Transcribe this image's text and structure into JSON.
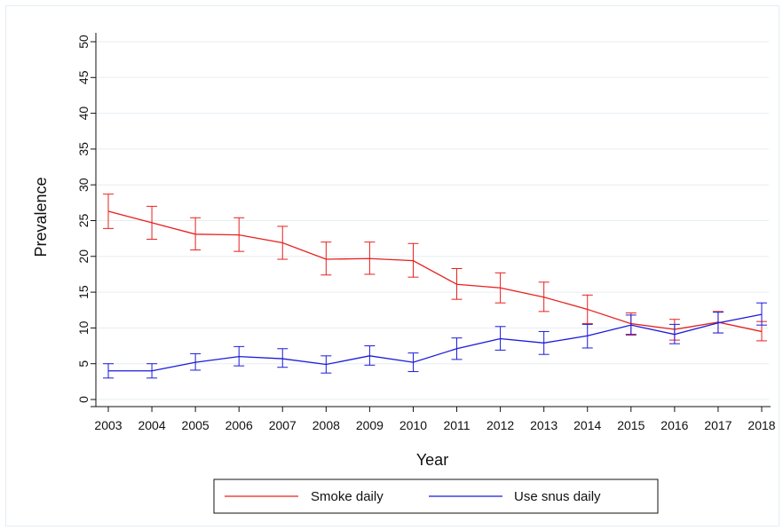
{
  "chart_data": {
    "type": "line",
    "title": "",
    "xlabel": "Year",
    "ylabel": "Prevalence",
    "ylim": [
      0,
      50
    ],
    "yticks": [
      0,
      5,
      10,
      15,
      20,
      25,
      30,
      35,
      40,
      45,
      50
    ],
    "grid": true,
    "legend_position": "bottom",
    "x": [
      2003,
      2004,
      2005,
      2006,
      2007,
      2008,
      2009,
      2010,
      2011,
      2012,
      2013,
      2014,
      2015,
      2016,
      2017,
      2018
    ],
    "series": [
      {
        "name": "Smoke daily",
        "color": "#e8201e",
        "values": [
          26.3,
          24.7,
          23.1,
          23.0,
          21.9,
          19.6,
          19.7,
          19.4,
          16.1,
          15.6,
          14.3,
          12.6,
          10.6,
          9.8,
          10.8,
          9.5
        ],
        "ci_low": [
          23.9,
          22.4,
          20.9,
          20.7,
          19.6,
          17.4,
          17.5,
          17.1,
          14.0,
          13.5,
          12.3,
          10.6,
          9.0,
          8.3,
          9.3,
          8.2
        ],
        "ci_high": [
          28.7,
          27.0,
          25.4,
          25.4,
          24.2,
          22.0,
          22.0,
          21.8,
          18.3,
          17.7,
          16.4,
          14.6,
          12.1,
          11.2,
          12.3,
          10.9
        ]
      },
      {
        "name": "Use snus daily",
        "color": "#1a1adb",
        "values": [
          4.0,
          4.0,
          5.2,
          6.0,
          5.7,
          4.9,
          6.1,
          5.2,
          7.1,
          8.5,
          7.9,
          8.9,
          10.4,
          9.1,
          10.7,
          11.9
        ],
        "ci_low": [
          3.0,
          3.0,
          4.1,
          4.7,
          4.5,
          3.7,
          4.8,
          3.9,
          5.6,
          6.9,
          6.3,
          7.2,
          9.1,
          7.8,
          9.3,
          10.4
        ],
        "ci_high": [
          5.0,
          5.0,
          6.4,
          7.4,
          7.1,
          6.1,
          7.5,
          6.5,
          8.6,
          10.2,
          9.5,
          10.5,
          11.8,
          10.5,
          12.2,
          13.5
        ]
      }
    ]
  }
}
